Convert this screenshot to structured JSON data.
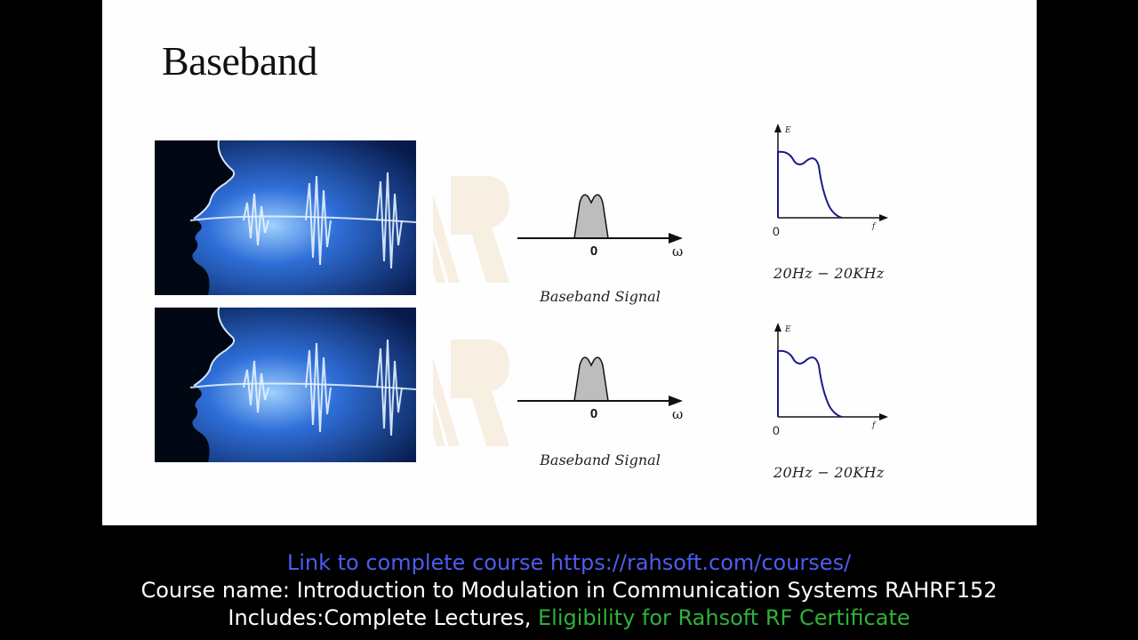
{
  "slide": {
    "title": "Baseband",
    "rows": [
      {
        "spectrum_axis": {
          "origin_label": "0",
          "axis_symbol": "ω"
        },
        "caption": "Baseband Signal",
        "energy_plot": {
          "y_label": "E",
          "x_label": "f",
          "origin_label": "0"
        },
        "frequency_range": "20Hz − 20KHz"
      },
      {
        "spectrum_axis": {
          "origin_label": "0",
          "axis_symbol": "ω"
        },
        "caption": "Baseband Signal",
        "energy_plot": {
          "y_label": "E",
          "x_label": "f",
          "origin_label": "0"
        },
        "frequency_range": "20Hz − 20KHz"
      }
    ]
  },
  "footer": {
    "course_link": "Link to complete course https://rahsoft.com/courses/",
    "course_name": "Course name: Introduction to Modulation in Communication Systems RAHRF152",
    "includes_prefix": "Includes:Complete Lectures, ",
    "includes_highlight": "Eligibility for Rahsoft RF Certificate"
  },
  "colors": {
    "link": "#4d5cf0",
    "highlight": "#2fb13a",
    "plot_line": "#1a1a8c"
  }
}
